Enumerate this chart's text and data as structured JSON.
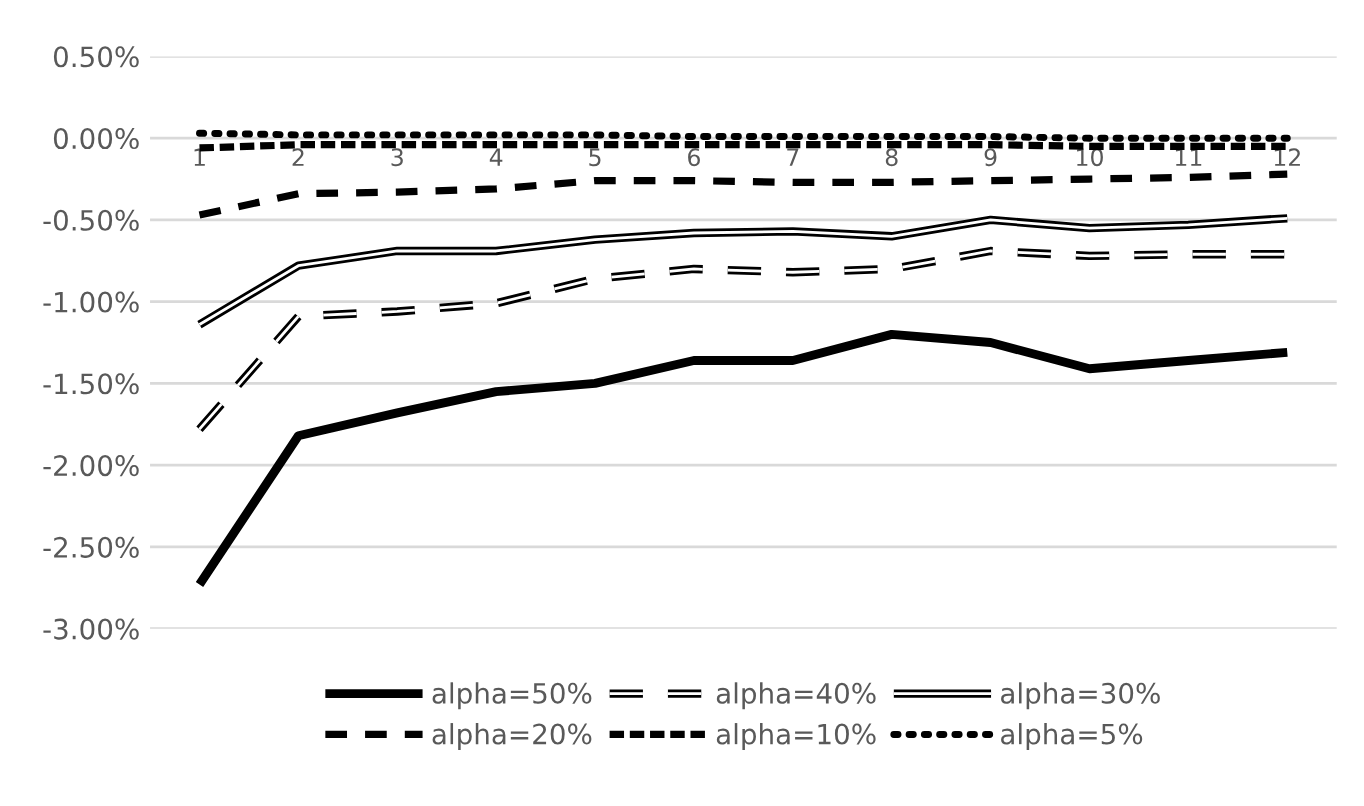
{
  "chart_data": {
    "type": "line",
    "categories": [
      "1",
      "2",
      "3",
      "4",
      "5",
      "6",
      "7",
      "8",
      "9",
      "10",
      "11",
      "12"
    ],
    "series": [
      {
        "name": "alpha=50%",
        "color": "#000000",
        "line_style": "solid",
        "values": [
          -2.73,
          -1.82,
          -1.68,
          -1.55,
          -1.5,
          -1.36,
          -1.36,
          -1.2,
          -1.25,
          -1.41,
          -1.36,
          -1.31
        ]
      },
      {
        "name": "alpha=40%",
        "color": "#000000",
        "line_style": "dashed",
        "values": [
          -1.78,
          -1.09,
          -1.06,
          -1.01,
          -0.86,
          -0.8,
          -0.82,
          -0.8,
          -0.69,
          -0.72,
          -0.71,
          -0.71
        ]
      },
      {
        "name": "alpha=30%",
        "color": "#000000",
        "line_style": "solid",
        "values": [
          -1.14,
          -0.78,
          -0.69,
          -0.69,
          -0.62,
          -0.58,
          -0.57,
          -0.6,
          -0.5,
          -0.55,
          -0.53,
          -0.49
        ]
      },
      {
        "name": "alpha=20%",
        "color": "#000000",
        "line_style": "dashed",
        "values": [
          -0.47,
          -0.34,
          -0.33,
          -0.31,
          -0.26,
          -0.26,
          -0.27,
          -0.27,
          -0.26,
          -0.25,
          -0.24,
          -0.22
        ]
      },
      {
        "name": "alpha=10%",
        "color": "#000000",
        "line_style": "dashed",
        "values": [
          -0.06,
          -0.04,
          -0.04,
          -0.04,
          -0.04,
          -0.04,
          -0.04,
          -0.04,
          -0.04,
          -0.05,
          -0.05,
          -0.05
        ]
      },
      {
        "name": "alpha=5%",
        "color": "#000000",
        "line_style": "dotted",
        "values": [
          0.03,
          0.02,
          0.02,
          0.02,
          0.02,
          0.01,
          0.01,
          0.01,
          0.01,
          0.0,
          0.0,
          0.0
        ]
      }
    ],
    "ylim": [
      -3,
      0.5
    ],
    "yticks": [
      {
        "value": 0.5,
        "label": "0.50%"
      },
      {
        "value": 0,
        "label": "0.00%"
      },
      {
        "value": -0.5,
        "label": "-0.50%"
      },
      {
        "value": -1,
        "label": "-1.00%"
      },
      {
        "value": -1.5,
        "label": "-1.50%"
      },
      {
        "value": -2,
        "label": "-2.00%"
      },
      {
        "value": -2.5,
        "label": "-2.50%"
      },
      {
        "value": -3,
        "label": "-3.00%"
      }
    ],
    "grid": "y",
    "legend": "bottom",
    "marker": "none"
  }
}
